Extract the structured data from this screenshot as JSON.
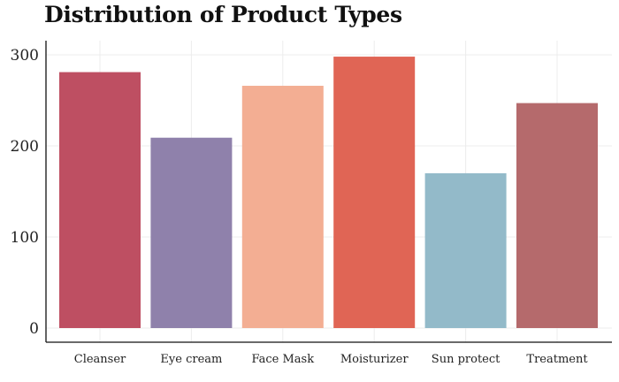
{
  "chart_data": {
    "type": "bar",
    "title": "Distribution of Product Types",
    "xlabel": "",
    "ylabel": "",
    "categories": [
      "Cleanser",
      "Eye cream",
      "Face Mask",
      "Moisturizer",
      "Sun protect",
      "Treatment"
    ],
    "values": [
      281,
      209,
      266,
      298,
      170,
      247
    ],
    "colors": [
      "#be4f62",
      "#8f81ab",
      "#f3ae93",
      "#e06555",
      "#93bac9",
      "#b56a6c"
    ],
    "ylim": [
      0,
      300
    ],
    "yticks": [
      0,
      100,
      200,
      300
    ],
    "grid": true
  }
}
